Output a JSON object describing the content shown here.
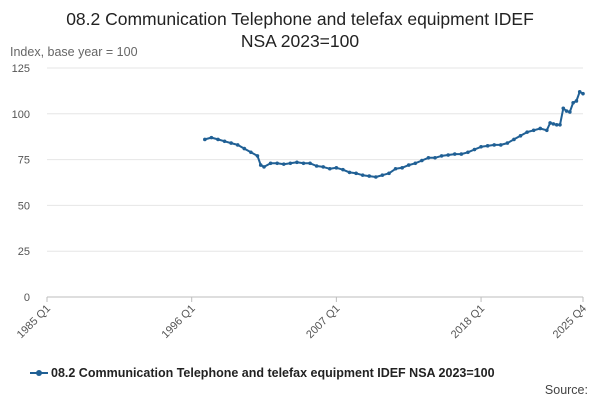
{
  "chart_data": {
    "type": "line",
    "title_lines": [
      "08.2 Communication Telephone and telefax equipment IDEF",
      "NSA 2023=100"
    ],
    "ylabel": "Index, base year = 100",
    "ylim": [
      0,
      125
    ],
    "yticks": [
      0,
      25,
      50,
      75,
      100,
      125
    ],
    "xlim": [
      1985.0,
      2025.75
    ],
    "xticks": [
      {
        "label": "1985 Q1",
        "value": 1985.0
      },
      {
        "label": "1996 Q1",
        "value": 1996.0
      },
      {
        "label": "2007 Q1",
        "value": 2007.0
      },
      {
        "label": "2018 Q1",
        "value": 2018.0
      },
      {
        "label": "2025 Q4",
        "value": 2025.75
      }
    ],
    "grid": true,
    "legend_position": "bottom",
    "source_label": "Source:",
    "series": [
      {
        "name": "08.2 Communication Telephone and telefax equipment IDEF NSA 2023=100",
        "color": "#206095",
        "points": [
          [
            1997.0,
            86
          ],
          [
            1997.5,
            87
          ],
          [
            1998.0,
            86
          ],
          [
            1998.5,
            85
          ],
          [
            1999.0,
            84
          ],
          [
            1999.5,
            83
          ],
          [
            2000.0,
            81
          ],
          [
            2000.5,
            79
          ],
          [
            2001.0,
            77
          ],
          [
            2001.25,
            72
          ],
          [
            2001.5,
            71
          ],
          [
            2002.0,
            73
          ],
          [
            2002.5,
            73
          ],
          [
            2003.0,
            72.5
          ],
          [
            2003.5,
            73
          ],
          [
            2004.0,
            73.5
          ],
          [
            2004.5,
            73
          ],
          [
            2005.0,
            73
          ],
          [
            2005.5,
            71.5
          ],
          [
            2006.0,
            71
          ],
          [
            2006.5,
            70
          ],
          [
            2007.0,
            70.5
          ],
          [
            2007.5,
            69.5
          ],
          [
            2008.0,
            68
          ],
          [
            2008.5,
            67.5
          ],
          [
            2009.0,
            66.5
          ],
          [
            2009.5,
            66
          ],
          [
            2010.0,
            65.5
          ],
          [
            2010.5,
            66.5
          ],
          [
            2011.0,
            67.5
          ],
          [
            2011.5,
            70
          ],
          [
            2012.0,
            70.5
          ],
          [
            2012.5,
            72
          ],
          [
            2013.0,
            73
          ],
          [
            2013.5,
            74.5
          ],
          [
            2014.0,
            76
          ],
          [
            2014.5,
            76
          ],
          [
            2015.0,
            77
          ],
          [
            2015.5,
            77.5
          ],
          [
            2016.0,
            78
          ],
          [
            2016.5,
            78
          ],
          [
            2017.0,
            79
          ],
          [
            2017.5,
            80.5
          ],
          [
            2018.0,
            82
          ],
          [
            2018.5,
            82.5
          ],
          [
            2019.0,
            83
          ],
          [
            2019.5,
            83
          ],
          [
            2020.0,
            84
          ],
          [
            2020.5,
            86
          ],
          [
            2021.0,
            88
          ],
          [
            2021.5,
            90
          ],
          [
            2022.0,
            91
          ],
          [
            2022.5,
            92
          ],
          [
            2023.0,
            91
          ],
          [
            2023.25,
            95
          ],
          [
            2023.5,
            94.5
          ],
          [
            2023.75,
            94
          ],
          [
            2024.0,
            94
          ],
          [
            2024.25,
            103
          ],
          [
            2024.5,
            101.5
          ],
          [
            2024.75,
            101
          ],
          [
            2025.0,
            106
          ],
          [
            2025.25,
            107
          ],
          [
            2025.5,
            112
          ],
          [
            2025.75,
            111
          ]
        ]
      }
    ]
  }
}
